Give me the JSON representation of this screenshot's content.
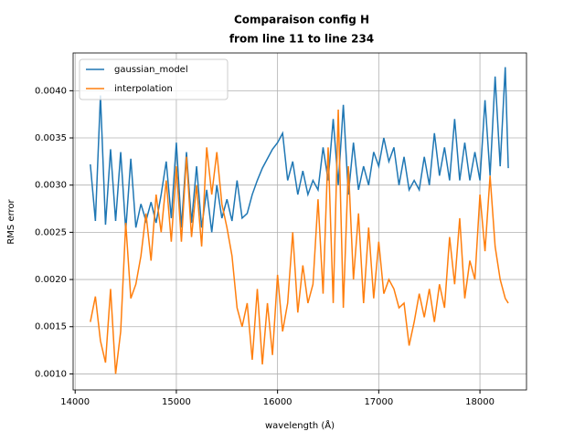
{
  "chart_data": {
    "type": "line",
    "title": [
      "Comparaison config H",
      "from line 11 to line 234"
    ],
    "xlabel": "wavelength (Å)",
    "ylabel": "RMS error",
    "x": [
      14150,
      14200,
      14250,
      14300,
      14350,
      14400,
      14450,
      14500,
      14550,
      14600,
      14650,
      14700,
      14750,
      14800,
      14850,
      14900,
      14950,
      15000,
      15050,
      15100,
      15150,
      15200,
      15250,
      15300,
      15350,
      15400,
      15450,
      15500,
      15550,
      15600,
      15650,
      15700,
      15750,
      15800,
      15850,
      15900,
      15950,
      16000,
      16050,
      16100,
      16150,
      16200,
      16250,
      16300,
      16350,
      16400,
      16450,
      16500,
      16550,
      16600,
      16650,
      16700,
      16750,
      16800,
      16850,
      16900,
      16950,
      17000,
      17050,
      17100,
      17150,
      17200,
      17250,
      17300,
      17350,
      17400,
      17450,
      17500,
      17550,
      17600,
      17650,
      17700,
      17750,
      17800,
      17850,
      17900,
      17950,
      18000,
      18050,
      18100,
      18150,
      18200,
      18250,
      18280
    ],
    "series": [
      {
        "name": "gaussian_model",
        "color": "#1f77b4",
        "values": [
          0.00322,
          0.00262,
          0.00395,
          0.00258,
          0.00338,
          0.00262,
          0.00335,
          0.00252,
          0.00328,
          0.00255,
          0.0028,
          0.00262,
          0.00282,
          0.0026,
          0.0029,
          0.00325,
          0.00265,
          0.00345,
          0.00255,
          0.00335,
          0.0026,
          0.0032,
          0.00255,
          0.00295,
          0.0025,
          0.003,
          0.00265,
          0.00285,
          0.00262,
          0.00305,
          0.00265,
          0.0027,
          0.0029,
          0.00305,
          0.00318,
          0.00328,
          0.00338,
          0.00345,
          0.00355,
          0.00305,
          0.00325,
          0.0029,
          0.00315,
          0.0029,
          0.00305,
          0.00295,
          0.0034,
          0.00305,
          0.0037,
          0.003,
          0.00385,
          0.0029,
          0.00345,
          0.00295,
          0.0032,
          0.003,
          0.00335,
          0.0032,
          0.0035,
          0.00325,
          0.0034,
          0.003,
          0.0033,
          0.00295,
          0.00305,
          0.00295,
          0.0033,
          0.003,
          0.00355,
          0.0031,
          0.0034,
          0.00305,
          0.0037,
          0.00305,
          0.00345,
          0.00305,
          0.00335,
          0.00305,
          0.0039,
          0.0031,
          0.00415,
          0.0032,
          0.00425,
          0.00318
        ]
      },
      {
        "name": "interpolation",
        "color": "#ff7f0e",
        "values": [
          0.00155,
          0.00182,
          0.00135,
          0.00112,
          0.0019,
          0.001,
          0.00145,
          0.0026,
          0.0018,
          0.00195,
          0.00225,
          0.0027,
          0.0022,
          0.0029,
          0.0025,
          0.00305,
          0.0024,
          0.0032,
          0.0024,
          0.0033,
          0.00245,
          0.003,
          0.00235,
          0.0034,
          0.0029,
          0.00335,
          0.0028,
          0.00255,
          0.00225,
          0.0017,
          0.0015,
          0.00175,
          0.00115,
          0.0019,
          0.0011,
          0.00175,
          0.0012,
          0.00205,
          0.00145,
          0.00175,
          0.0025,
          0.00165,
          0.00215,
          0.00175,
          0.00195,
          0.00285,
          0.00185,
          0.0034,
          0.00175,
          0.0038,
          0.0017,
          0.0032,
          0.002,
          0.0027,
          0.00175,
          0.00255,
          0.0018,
          0.0024,
          0.00185,
          0.002,
          0.0019,
          0.0017,
          0.00175,
          0.0013,
          0.00155,
          0.00185,
          0.0016,
          0.0019,
          0.00155,
          0.00195,
          0.0017,
          0.00245,
          0.00195,
          0.00265,
          0.0018,
          0.0022,
          0.002,
          0.0029,
          0.0023,
          0.0031,
          0.00235,
          0.002,
          0.0018,
          0.00175
        ]
      }
    ],
    "xlim": [
      13980,
      18460
    ],
    "ylim": [
      0.00083,
      0.0044
    ],
    "xticks": [
      14000,
      15000,
      16000,
      17000,
      18000
    ],
    "yticks": [
      {
        "value": 0.001,
        "label": "0.0010"
      },
      {
        "value": 0.0015,
        "label": "0.0015"
      },
      {
        "value": 0.002,
        "label": "0.0020"
      },
      {
        "value": 0.0025,
        "label": "0.0025"
      },
      {
        "value": 0.003,
        "label": "0.0030"
      },
      {
        "value": 0.0035,
        "label": "0.0035"
      },
      {
        "value": 0.004,
        "label": "0.0040"
      }
    ],
    "grid": true,
    "legend": "upper-left"
  }
}
